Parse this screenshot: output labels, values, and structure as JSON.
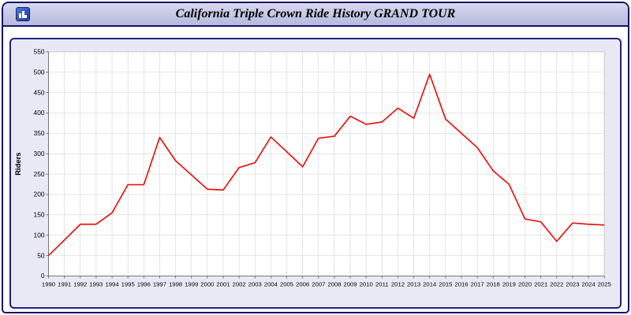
{
  "window": {
    "title": "California Triple Crown Ride History GRAND TOUR",
    "icon": "app-chart-icon"
  },
  "chart_data": {
    "type": "line",
    "title": "California Triple Crown Ride History GRAND TOUR",
    "xlabel": "",
    "ylabel": "Riders",
    "x": [
      "1990",
      "1991",
      "1992",
      "1993",
      "1994",
      "1995",
      "1996",
      "1997",
      "1998",
      "1999",
      "2000",
      "2001",
      "2002",
      "2003",
      "2004",
      "2005",
      "2006",
      "2007",
      "2008",
      "2009",
      "2010",
      "2011",
      "2012",
      "2013",
      "2014",
      "2015",
      "2016",
      "2017",
      "2018",
      "2019",
      "2020",
      "2021",
      "2022",
      "2023",
      "2024",
      "2025"
    ],
    "values": [
      50,
      88,
      127,
      127,
      155,
      224,
      224,
      340,
      283,
      248,
      213,
      211,
      266,
      278,
      341,
      305,
      268,
      338,
      343,
      392,
      372,
      378,
      412,
      387,
      495,
      385,
      350,
      315,
      258,
      225,
      140,
      133,
      85,
      130,
      127,
      125
    ],
    "ylim": [
      0,
      550
    ],
    "yticks": [
      0,
      50,
      100,
      150,
      200,
      250,
      300,
      350,
      400,
      450,
      500,
      550
    ],
    "grid": true,
    "legend": "none",
    "line_color": "#ee1111",
    "grid_color": "#cccccc",
    "plot_bg": "#ffffff",
    "panel_bg": "#e9e9f6"
  }
}
